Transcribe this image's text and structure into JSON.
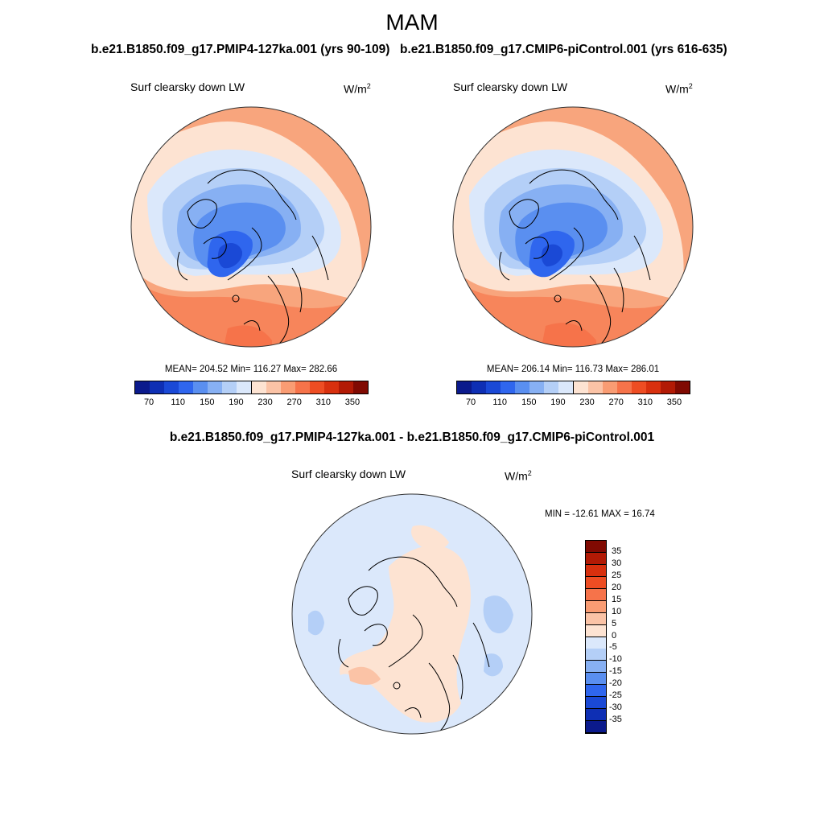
{
  "figure": {
    "season": "MAM",
    "colors": {
      "ocean_dark": "#5a8ff0",
      "coast": "#000000"
    }
  },
  "panels": [
    {
      "title": "b.e21.B1850.f09_g17.PMIP4-127ka.001 (yrs 90-109)",
      "variable": "Surf clearsky down LW",
      "units": "W/m",
      "units_exp": "2",
      "stats": "MEAN= 204.52  Min= 116.27  Max= 282.66"
    },
    {
      "title": "b.e21.B1850.f09_g17.CMIP6-piControl.001 (yrs 616-635)",
      "variable": "Surf clearsky down LW",
      "units": "W/m",
      "units_exp": "2",
      "stats": "MEAN= 206.14  Min= 116.73  Max= 286.01"
    }
  ],
  "abs_colorbar": {
    "colors": [
      "#0b1a8c",
      "#0e2fb4",
      "#1a49d6",
      "#2f66ee",
      "#5a8ff0",
      "#87b0f3",
      "#b4cff7",
      "#dbe8fb",
      "#fde3d2",
      "#fbc3a6",
      "#f99c73",
      "#f6734a",
      "#ee4d23",
      "#d8300e",
      "#b21a05",
      "#800a02"
    ],
    "tick_labels": [
      "70",
      "110",
      "150",
      "190",
      "230",
      "270",
      "310",
      "350"
    ]
  },
  "difference": {
    "title": "b.e21.B1850.f09_g17.PMIP4-127ka.001 - b.e21.B1850.f09_g17.CMIP6-piControl.001",
    "variable": "Surf clearsky down LW",
    "units": "W/m",
    "units_exp": "2",
    "minmax": "MIN = -12.61 MAX =  16.74",
    "colorbar": {
      "colors_top_to_bottom": [
        "#800a02",
        "#b21a05",
        "#d8300e",
        "#ee4d23",
        "#f6734a",
        "#f99c73",
        "#fbc3a6",
        "#fde3d2",
        "#dbe8fb",
        "#b4cff7",
        "#87b0f3",
        "#5a8ff0",
        "#2f66ee",
        "#1a49d6",
        "#0e2fb4",
        "#0b1a8c"
      ],
      "tick_labels": [
        "35",
        "30",
        "25",
        "20",
        "15",
        "10",
        "5",
        "0",
        "-5",
        "-10",
        "-15",
        "-20",
        "-25",
        "-30",
        "-35"
      ]
    }
  }
}
